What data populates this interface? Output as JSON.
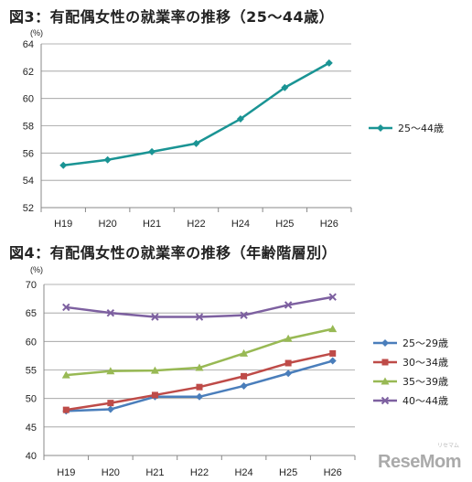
{
  "brand": {
    "watermark": "ReseMom",
    "watermark_kana": "リセマム"
  },
  "chart_data": [
    {
      "type": "line",
      "title": "図3：有配偶女性の就業率の推移（25～44歳）",
      "unit": "(%)",
      "categories": [
        "H19",
        "H20",
        "H21",
        "H22",
        "H24",
        "H25",
        "H26"
      ],
      "ylim": [
        52,
        64
      ],
      "yticks": [
        52,
        54,
        56,
        58,
        60,
        62,
        64
      ],
      "grid": true,
      "legend_position": "right",
      "series": [
        {
          "name": "25～44歳",
          "color": "#1a9494",
          "marker": "diamond",
          "values": [
            55.1,
            55.5,
            56.1,
            56.7,
            58.5,
            60.8,
            62.6
          ]
        }
      ]
    },
    {
      "type": "line",
      "title": "図4：有配偶女性の就業率の推移（年齢階層別）",
      "unit": "(%)",
      "categories": [
        "H19",
        "H20",
        "H21",
        "H22",
        "H24",
        "H25",
        "H26"
      ],
      "ylim": [
        40,
        70
      ],
      "yticks": [
        40,
        45,
        50,
        55,
        60,
        65,
        70
      ],
      "grid": true,
      "legend_position": "right",
      "series": [
        {
          "name": "25～29歳",
          "color": "#4a7ebb",
          "marker": "diamond",
          "values": [
            47.8,
            48.1,
            50.3,
            50.3,
            52.2,
            54.4,
            56.6
          ]
        },
        {
          "name": "30～34歳",
          "color": "#be4b48",
          "marker": "square",
          "values": [
            48.0,
            49.2,
            50.6,
            52.0,
            53.9,
            56.2,
            57.9
          ]
        },
        {
          "name": "35～39歳",
          "color": "#98b954",
          "marker": "triangle",
          "values": [
            54.1,
            54.8,
            54.9,
            55.4,
            57.9,
            60.5,
            62.2
          ]
        },
        {
          "name": "40～44歳",
          "color": "#7d60a0",
          "marker": "x",
          "values": [
            66.0,
            65.0,
            64.3,
            64.3,
            64.6,
            66.4,
            67.8
          ]
        }
      ]
    }
  ]
}
